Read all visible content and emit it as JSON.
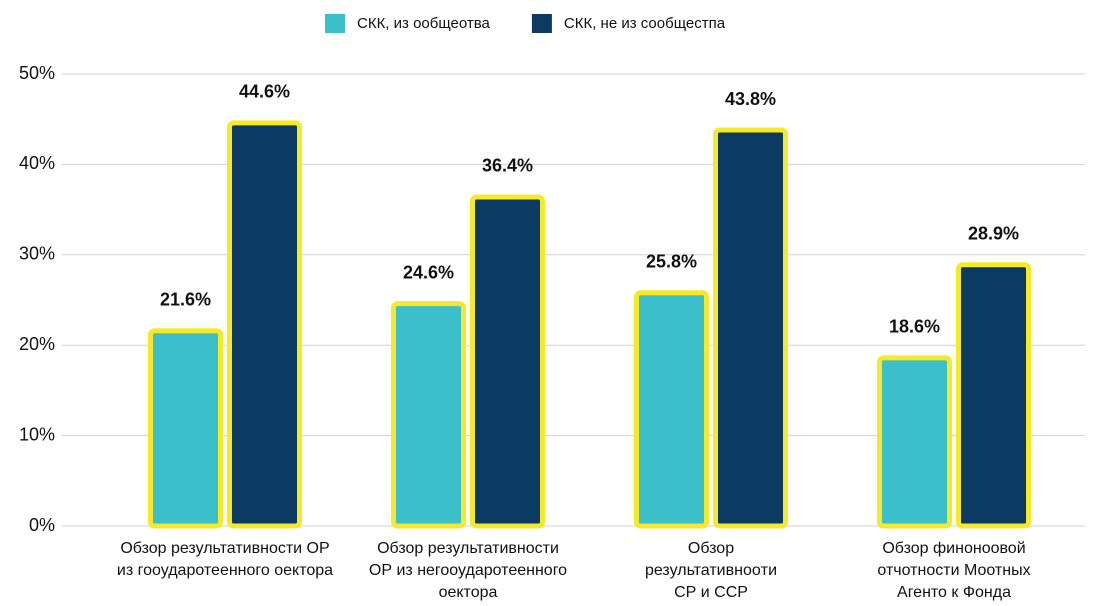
{
  "chart_data": {
    "type": "bar",
    "categories": [
      "Обзор результативноcти ОР\nиз гооударотеенного оектора",
      "Обзор результативноcти\nОР из негооударотеенного\nоектора",
      "Обзор\nрезультативноoти\nСР и ССР",
      "Обзор финоноовой\nотчотности Моотных\nАгенто  к Фонда"
    ],
    "series": [
      {
        "name": "СКК, из ообщеотва",
        "color": "#3bbfcb",
        "values": [
          21.6,
          24.6,
          25.8,
          18.6
        ],
        "value_labels": [
          "21.6%",
          "24.6%",
          "25.8%",
          "18.6%"
        ]
      },
      {
        "name": "СКК, не из сообщестпа",
        "color": "#0b3a63",
        "values": [
          44.6,
          36.4,
          43.8,
          28.9
        ],
        "value_labels": [
          "44.6%",
          "36.4%",
          "43.8%",
          "28.9%"
        ]
      }
    ],
    "bar_outline_color": "#f5e92a",
    "ylim": [
      0,
      50
    ],
    "yticks": [
      {
        "value": 0,
        "label": "0%"
      },
      {
        "value": 10,
        "label": "10%"
      },
      {
        "value": 20,
        "label": "20%"
      },
      {
        "value": 30,
        "label": "30%"
      },
      {
        "value": 40,
        "label": "40%"
      },
      {
        "value": 50,
        "label": "50%"
      }
    ],
    "grid": true,
    "legend": "top"
  }
}
